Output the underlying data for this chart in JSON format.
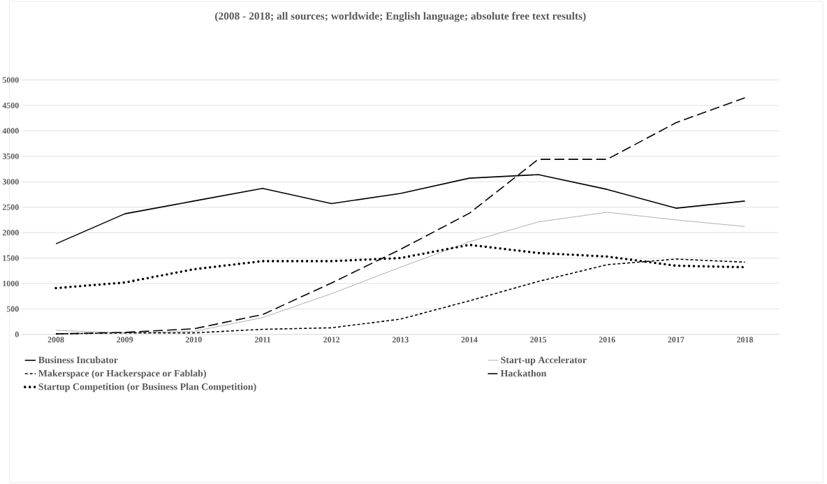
{
  "chart_data": {
    "type": "line",
    "title": "(2008 - 2018; all sources; worldwide; English language; absolute free text results)",
    "categories": [
      "2008",
      "2009",
      "2010",
      "2011",
      "2012",
      "2013",
      "2014",
      "2015",
      "2016",
      "2017",
      "2018"
    ],
    "series": [
      {
        "name": "Business Incubator",
        "color": "#000000",
        "line_style": "solid",
        "values": [
          1780,
          2370,
          2620,
          2870,
          2570,
          2770,
          3070,
          3140,
          2850,
          2480,
          2620
        ]
      },
      {
        "name": "Start-up Accelerator",
        "color": "#a5a5a5",
        "line_style": "solid",
        "values": [
          80,
          30,
          60,
          330,
          800,
          1320,
          1820,
          2210,
          2400,
          2250,
          2120
        ]
      },
      {
        "name": "Makerspace (or Hackerspace or Fablab)",
        "color": "#000000",
        "line_style": "dashed",
        "values": [
          10,
          30,
          30,
          100,
          130,
          300,
          660,
          1040,
          1370,
          1480,
          1420
        ]
      },
      {
        "name": "Hackathon",
        "color": "#000000",
        "line_style": "dashed",
        "values": [
          10,
          40,
          110,
          390,
          1010,
          1670,
          2380,
          3440,
          3440,
          4160,
          4650
        ]
      },
      {
        "name": "Startup Competition (or Business Plan Competition)",
        "color": "#000000",
        "line_style": "dotted",
        "values": [
          910,
          1020,
          1280,
          1440,
          1440,
          1500,
          1760,
          1600,
          1530,
          1350,
          1320
        ]
      }
    ],
    "ylim": [
      0,
      5000
    ],
    "yticks": [
      0,
      500,
      1000,
      1500,
      2000,
      2500,
      3000,
      3500,
      4000,
      4500,
      5000
    ],
    "grid": "y",
    "legend": "bottom",
    "marker": "none"
  }
}
